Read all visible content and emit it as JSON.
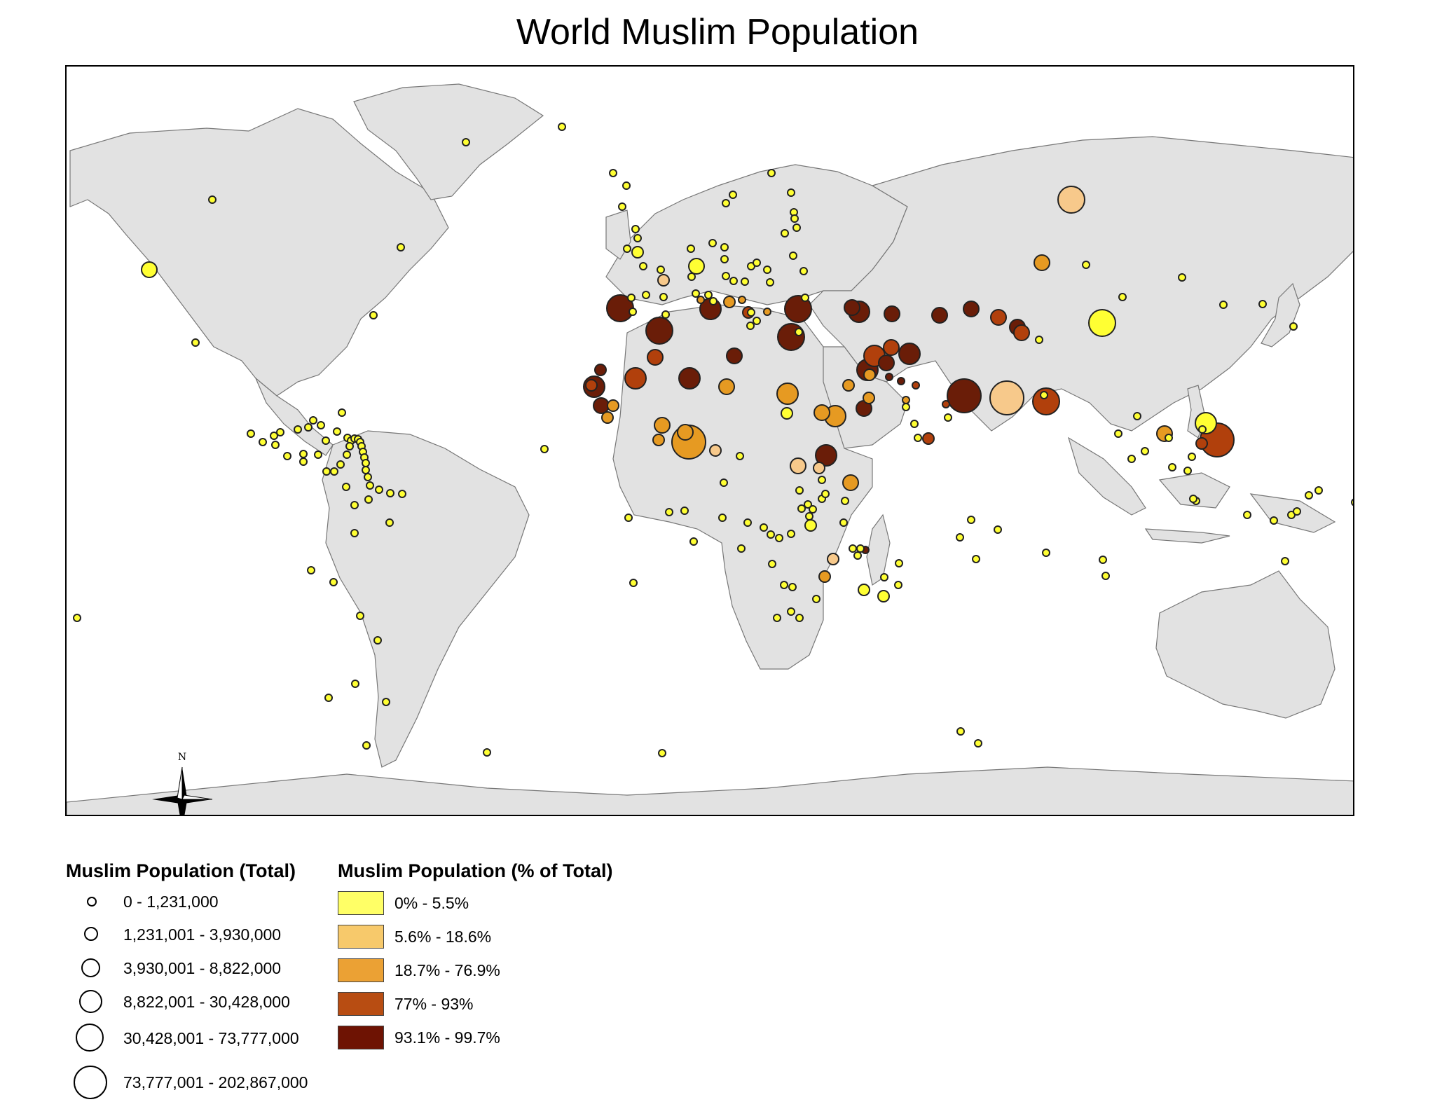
{
  "title": "World Muslim Population",
  "legend_total": {
    "title": "Muslim Population (Total)",
    "classes": [
      "0 - 1,231,000",
      "1,231,001 - 3,930,000",
      "3,930,001 - 8,822,000",
      "8,822,001 - 30,428,000",
      "30,428,001 - 73,777,000",
      "73,777,001 - 202,867,000"
    ]
  },
  "legend_percent": {
    "title": "Muslim Population (% of Total)",
    "classes": [
      {
        "label": "0% - 5.5%",
        "color": "#ffff66"
      },
      {
        "label": "5.6% - 18.6%",
        "color": "#f7c96b"
      },
      {
        "label": "18.7% - 76.9%",
        "color": "#eba134"
      },
      {
        "label": "77% - 93%",
        "color": "#b84d12"
      },
      {
        "label": "93.1% - 99.7%",
        "color": "#6e1303"
      }
    ]
  },
  "compass": {
    "label": "N"
  },
  "colors": {
    "land": "#e2e2e2",
    "border": "#777777",
    "pct_1": "#ffff33",
    "pct_2": "#f7c98b",
    "pct_3": "#e69a22",
    "pct_4": "#b1400c",
    "pct_5": "#6a1d08"
  }
}
